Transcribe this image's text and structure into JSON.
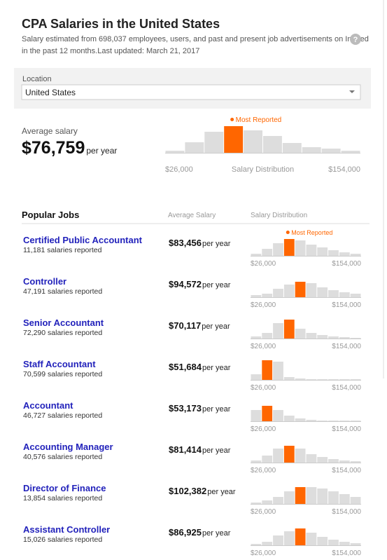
{
  "header": {
    "title": "CPA Salaries in the United States",
    "subtitle_lines": [
      "Salary estimated from 698,037 employees, users, and past and present job advertisements on Indeed",
      "in the past 12 months.Last updated: March 21, 2017"
    ],
    "help_icon": "?"
  },
  "location": {
    "label": "Location",
    "value": "United States"
  },
  "summary": {
    "label": "Average salary",
    "amount": "$76,759",
    "unit": "per year",
    "most_reported": "Most Reported",
    "dist_min": "$26,000",
    "dist_label": "Salary Distribution",
    "dist_max": "$154,000",
    "bars": [
      3,
      15,
      30,
      38,
      32,
      24,
      14,
      8,
      6,
      3
    ],
    "highlight": 3
  },
  "jobs": {
    "headers": [
      "Popular Jobs",
      "Average Salary",
      "Salary Distribution"
    ],
    "rows": [
      {
        "title": "Certified Public Accountant",
        "count": "11,181 salaries reported",
        "salary": "$83,456",
        "unit": "per year",
        "most_reported": "Most Reported",
        "dist_min": "$26,000",
        "dist_max": "$154,000",
        "bars": [
          3,
          10,
          18,
          24,
          22,
          16,
          12,
          8,
          5,
          3
        ],
        "highlight": 3
      },
      {
        "title": "Controller",
        "count": "47,191 salaries reported",
        "salary": "$94,572",
        "unit": "per year",
        "dist_min": "$26,000",
        "dist_max": "$154,000",
        "bars": [
          3,
          5,
          12,
          18,
          22,
          20,
          14,
          10,
          7,
          5
        ],
        "highlight": 4
      },
      {
        "title": "Senior Accountant",
        "count": "72,290 salaries reported",
        "salary": "$70,117",
        "unit": "per year",
        "dist_min": "$26,000",
        "dist_max": "$154,000",
        "bars": [
          3,
          8,
          22,
          27,
          14,
          8,
          5,
          3,
          2,
          1
        ],
        "highlight": 3
      },
      {
        "title": "Staff Accountant",
        "count": "70,599 salaries reported",
        "salary": "$51,684",
        "unit": "per year",
        "dist_min": "$26,000",
        "dist_max": "$154,000",
        "bars": [
          8,
          28,
          26,
          4,
          2,
          1,
          1,
          1,
          1,
          1
        ],
        "highlight": 1
      },
      {
        "title": "Accountant",
        "count": "46,727 salaries reported",
        "salary": "$53,173",
        "unit": "per year",
        "dist_min": "$26,000",
        "dist_max": "$154,000",
        "bars": [
          16,
          22,
          16,
          8,
          4,
          2,
          1,
          1,
          1,
          1
        ],
        "highlight": 1
      },
      {
        "title": "Accounting Manager",
        "count": "40,576 salaries reported",
        "salary": "$81,414",
        "unit": "per year",
        "dist_min": "$26,000",
        "dist_max": "$154,000",
        "bars": [
          3,
          10,
          20,
          24,
          20,
          12,
          8,
          5,
          3,
          2
        ],
        "highlight": 3
      },
      {
        "title": "Director of Finance",
        "count": "13,854 salaries reported",
        "salary": "$102,382",
        "unit": "per year",
        "dist_min": "$26,000",
        "dist_max": "$154,000",
        "bars": [
          2,
          5,
          10,
          18,
          24,
          24,
          22,
          18,
          14,
          10
        ],
        "highlight": 4
      },
      {
        "title": "Assistant Controller",
        "count": "15,026 salaries reported",
        "salary": "$86,925",
        "unit": "per year",
        "dist_min": "$26,000",
        "dist_max": "$154,000",
        "bars": [
          2,
          5,
          14,
          20,
          24,
          18,
          12,
          8,
          5,
          3
        ],
        "highlight": 4
      }
    ]
  }
}
